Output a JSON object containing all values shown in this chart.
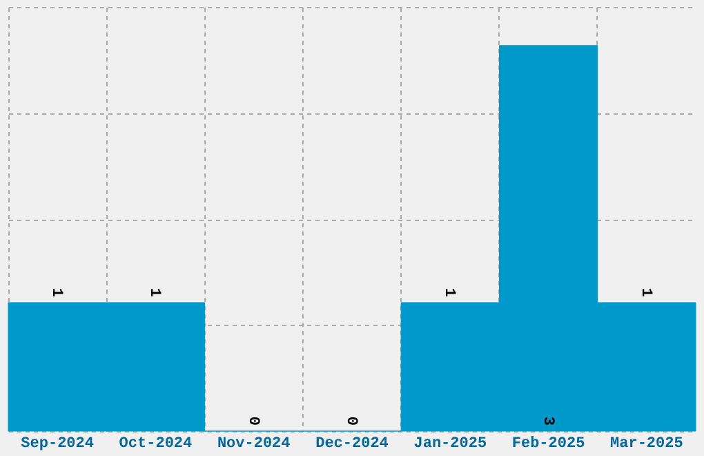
{
  "chart_data": {
    "type": "bar",
    "categories": [
      "Sep-2024",
      "Oct-2024",
      "Nov-2024",
      "Dec-2024",
      "Jan-2025",
      "Feb-2025",
      "Mar-2025"
    ],
    "values": [
      1,
      1,
      0,
      0,
      1,
      3,
      1
    ],
    "color": "#0099cc",
    "data_labels": true,
    "grid": true,
    "tick_labels": "x",
    "ylim": [
      0,
      3.3
    ],
    "yticks": [
      {
        "value": 0,
        "label": null
      },
      {
        "value": 0.825,
        "label": null
      },
      {
        "value": 1.65,
        "label": null
      },
      {
        "value": 2.475,
        "label": null
      },
      {
        "value": 3.3,
        "label": null
      }
    ]
  }
}
